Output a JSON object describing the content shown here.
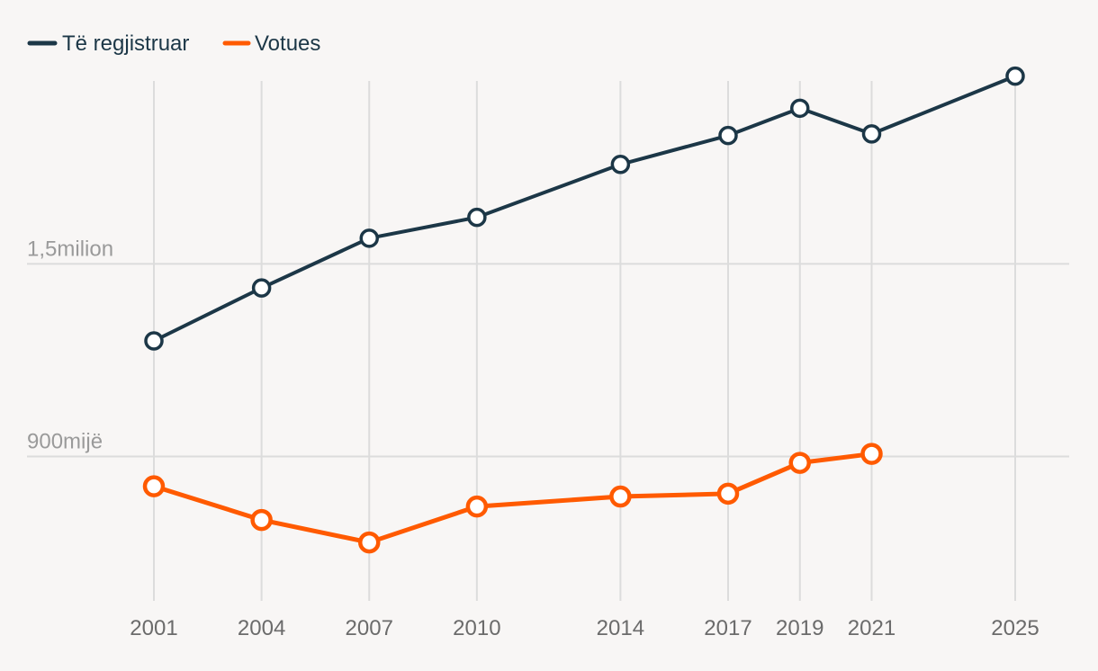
{
  "chart_data": {
    "type": "line",
    "title": "",
    "xlabel": "",
    "ylabel": "",
    "x": [
      2001,
      2004,
      2007,
      2010,
      2014,
      2017,
      2019,
      2021,
      2025
    ],
    "x_tick_labels": [
      "2001",
      "2004",
      "2007",
      "2010",
      "2014",
      "2017",
      "2019",
      "2021",
      "2025"
    ],
    "y_tick_values": [
      900000,
      1500000
    ],
    "y_tick_labels": [
      "900mijë",
      "1,5milion"
    ],
    "ylim": [
      450000,
      2070000
    ],
    "grid": true,
    "legend_position": "top-left",
    "series": [
      {
        "name": "Të regjistruar",
        "color": "#1c3747",
        "values": [
          1260000,
          1425000,
          1580000,
          1645000,
          1810000,
          1900000,
          1985000,
          1905000,
          2085000
        ]
      },
      {
        "name": "Votues",
        "color": "#ff5a00",
        "values": [
          807000,
          702000,
          632000,
          744000,
          775000,
          784000,
          880000,
          908000,
          null
        ]
      }
    ]
  }
}
